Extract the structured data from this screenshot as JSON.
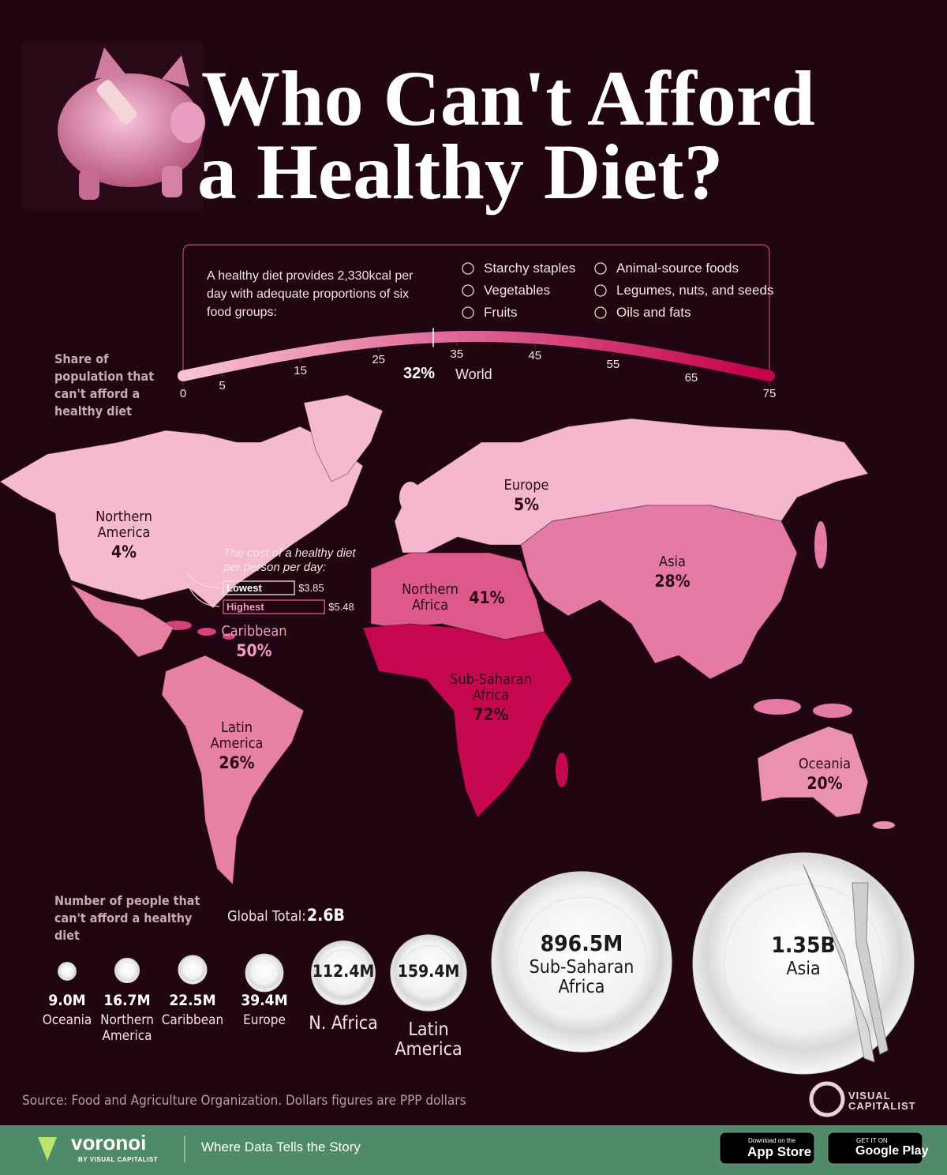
{
  "title": [
    "Who Can't Afford",
    "a Healthy Diet?"
  ],
  "intro": "A healthy diet provides 2,330kcal per day with adequate proportions of six food groups:",
  "food_groups": [
    "Starchy staples",
    "Vegetables",
    "Fruits",
    "Animal-source foods",
    "Legumes, nuts, and seeds",
    "Oils and fats"
  ],
  "chart_data": [
    {
      "type": "choropleth",
      "title": "Share of population that can't afford a healthy diet",
      "xlim": [
        0,
        75
      ],
      "xticks": [
        0,
        5,
        15,
        25,
        35,
        45,
        55,
        65,
        75
      ],
      "world": {
        "name": "World",
        "value": 32,
        "value_label": "32%"
      },
      "categories": [
        "Northern America",
        "Caribbean",
        "Latin America",
        "Europe",
        "Northern Africa",
        "Sub-Saharan Africa",
        "Asia",
        "Oceania"
      ],
      "values": [
        4,
        50,
        26,
        5,
        41,
        72,
        28,
        20
      ],
      "value_labels": [
        "4%",
        "50%",
        "26%",
        "5%",
        "41%",
        "72%",
        "28%",
        "20%"
      ]
    },
    {
      "type": "bubble",
      "title": "Number of people that can't afford a healthy diet",
      "total_name": "Global Total:",
      "total": 2600000000,
      "total_label": "2.6B",
      "categories": [
        "Oceania",
        "Northern America",
        "Caribbean",
        "Europe",
        "N. Africa",
        "Latin America",
        "Sub-Saharan Africa",
        "Asia"
      ],
      "values": [
        9000000,
        16700000,
        22500000,
        39400000,
        112400000,
        159400000,
        896500000,
        1350000000
      ],
      "value_labels": [
        "9.0M",
        "16.7M",
        "22.5M",
        "39.4M",
        "112.4M",
        "159.4M",
        "896.5M",
        "1.35B"
      ]
    }
  ],
  "cost": {
    "title": "The cost of a healthy diet per person per day:",
    "items": [
      {
        "name": "Lowest",
        "value": 3.85,
        "label": "$3.85"
      },
      {
        "name": "Highest",
        "value": 5.48,
        "label": "$5.48"
      }
    ]
  },
  "source": "Source: Food and Agriculture Organization. Dollars figures are PPP dollars",
  "brand": {
    "visual_capitalist": [
      "VISUAL",
      "CAPITALIST"
    ],
    "voronoi": "voronoi",
    "by": "BY VISUAL CAPITALIST",
    "tagline": "Where Data Tells the Story",
    "app_store": [
      "Download on the",
      "App Store"
    ],
    "google_play": [
      "GET IT ON",
      "Google Play"
    ]
  }
}
